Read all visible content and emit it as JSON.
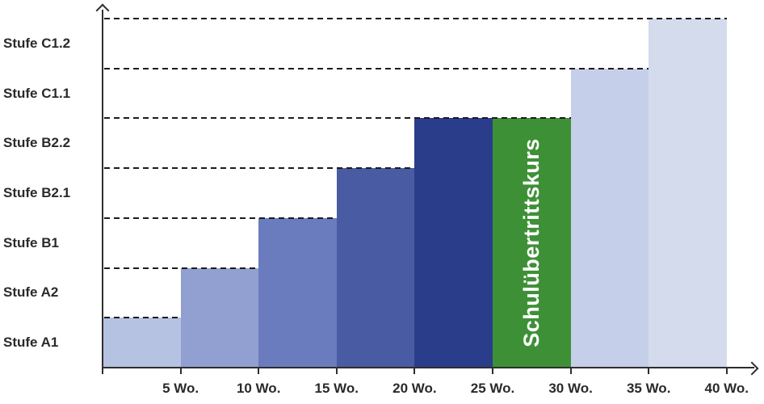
{
  "chart_data": {
    "type": "bar",
    "title": "",
    "x_axis": {
      "tick_labels": [
        "5 Wo.",
        "10 Wo.",
        "15 Wo.",
        "20 Wo.",
        "25 Wo.",
        "30 Wo.",
        "35 Wo.",
        "40 Wo."
      ],
      "weeks_per_tick": 5,
      "range_weeks": [
        0,
        40
      ]
    },
    "y_axis": {
      "tick_labels": [
        "Stufe A1",
        "Stufe A2",
        "Stufe B1",
        "Stufe B2.1",
        "Stufe B2.2",
        "Stufe C1.1",
        "Stufe C1.2"
      ],
      "range_levels": [
        0,
        7
      ]
    },
    "bars": [
      {
        "label": "",
        "weeks_start": 0,
        "weeks_end": 5,
        "level": 1,
        "level_name": "Stufe A1",
        "color": "#b5c2e2"
      },
      {
        "label": "",
        "weeks_start": 5,
        "weeks_end": 10,
        "level": 2,
        "level_name": "Stufe A2",
        "color": "#92a0d1"
      },
      {
        "label": "",
        "weeks_start": 10,
        "weeks_end": 15,
        "level": 3,
        "level_name": "Stufe B1",
        "color": "#6a7cbe"
      },
      {
        "label": "",
        "weeks_start": 15,
        "weeks_end": 20,
        "level": 4,
        "level_name": "Stufe B2.1",
        "color": "#495ba2"
      },
      {
        "label": "",
        "weeks_start": 20,
        "weeks_end": 25,
        "level": 5,
        "level_name": "Stufe B2.2",
        "color": "#2a3d8b"
      },
      {
        "label": "Schulübertrittskurs",
        "weeks_start": 25,
        "weeks_end": 30,
        "level": 5,
        "level_name": "Stufe B2.2",
        "color": "#3e9037",
        "label_color": "#ffffff"
      },
      {
        "label": "",
        "weeks_start": 30,
        "weeks_end": 35,
        "level": 6,
        "level_name": "Stufe C1.1",
        "color": "#c6cfe9"
      },
      {
        "label": "",
        "weeks_start": 35,
        "weeks_end": 40,
        "level": 7,
        "level_name": "Stufe C1.2",
        "color": "#d3dbed"
      }
    ],
    "gridlines": {
      "style": "dashed",
      "color": "#1c1c1c",
      "note": "each dashed level line runs from the y-axis to the right edge of the last bar reaching that level"
    },
    "legend": null,
    "colors": {
      "axis": "#2e2e2e",
      "text": "#2a2a2a",
      "background": "#ffffff"
    }
  }
}
